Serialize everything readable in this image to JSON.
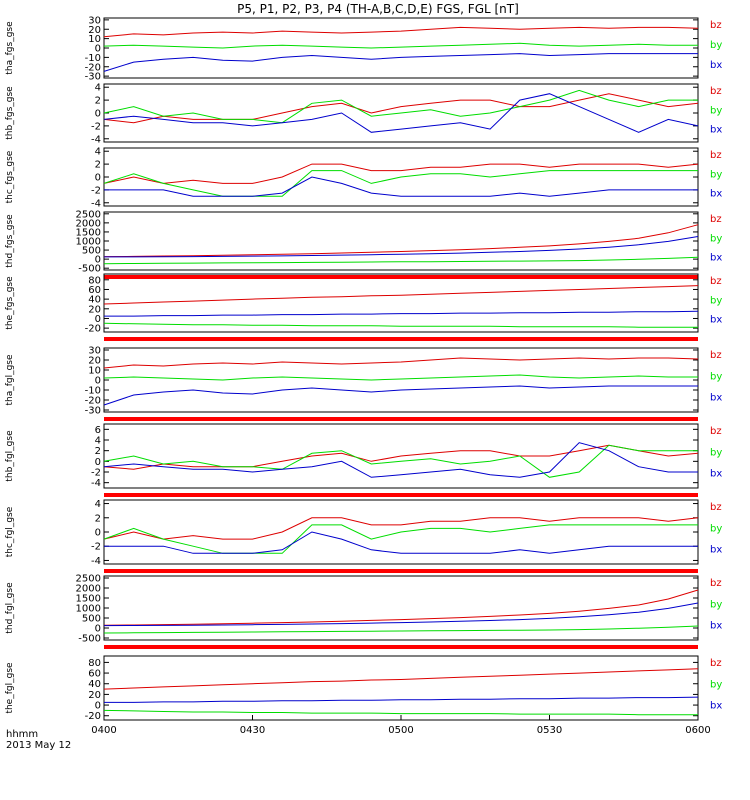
{
  "title": "P5, P1, P2, P3, P4 (TH-A,B,C,D,E) FGS, FGL [nT]",
  "footer": {
    "time_unit": "hhmm",
    "date": "2013 May 12"
  },
  "x_ticks": [
    "0400",
    "0430",
    "0500",
    "0530",
    "0600"
  ],
  "colors": {
    "bz": "#dd0000",
    "by": "#00dd00",
    "bx": "#0000cc",
    "bar": "#ff0000",
    "frame": "#000000"
  },
  "chart_data": [
    {
      "type": "line",
      "ylabel": "tha_fgs_gse",
      "yticks": [
        "30",
        "20",
        "10",
        "0",
        "-10",
        "-20",
        "-30"
      ],
      "ylim": [
        -32,
        32
      ],
      "x_range": [
        "0400",
        "0600"
      ],
      "series": [
        {
          "name": "bz",
          "values": [
            12,
            15,
            14,
            16,
            17,
            16,
            18,
            17,
            16,
            17,
            18,
            20,
            22,
            21,
            20,
            21,
            22,
            21,
            22,
            22,
            21
          ]
        },
        {
          "name": "by",
          "values": [
            2,
            3,
            2,
            1,
            0,
            2,
            3,
            2,
            1,
            0,
            1,
            2,
            3,
            4,
            5,
            3,
            2,
            3,
            4,
            3,
            3
          ]
        },
        {
          "name": "bx",
          "values": [
            -25,
            -15,
            -12,
            -10,
            -13,
            -14,
            -10,
            -8,
            -10,
            -12,
            -10,
            -9,
            -8,
            -7,
            -6,
            -8,
            -7,
            -6,
            -6,
            -6,
            -6
          ]
        }
      ],
      "status_bar": false
    },
    {
      "type": "line",
      "ylabel": "thb_fgs_gse",
      "yticks": [
        "4",
        "2",
        "0",
        "-2",
        "-4"
      ],
      "ylim": [
        -4.5,
        4.5
      ],
      "series": [
        {
          "name": "bz",
          "values": [
            -1,
            -1.5,
            -0.5,
            -1,
            -1,
            -1,
            0,
            1,
            1.5,
            0,
            1,
            1.5,
            2,
            2,
            1,
            1,
            2,
            3,
            2,
            1,
            1.5
          ]
        },
        {
          "name": "by",
          "values": [
            0,
            1,
            -0.5,
            0,
            -1,
            -1,
            -1.5,
            1.5,
            2,
            -0.5,
            0,
            0.5,
            -0.5,
            0,
            1,
            2,
            3.5,
            2,
            1,
            2,
            2
          ]
        },
        {
          "name": "bx",
          "values": [
            -1,
            -0.5,
            -1,
            -1.5,
            -1.5,
            -2,
            -1.5,
            -1,
            0,
            -3,
            -2.5,
            -2,
            -1.5,
            -2.5,
            2,
            3,
            1,
            -1,
            -3,
            -1,
            -2
          ]
        }
      ],
      "status_bar": false
    },
    {
      "type": "line",
      "ylabel": "thc_fgs_gse",
      "yticks": [
        "4",
        "2",
        "0",
        "-2",
        "-4"
      ],
      "ylim": [
        -4.5,
        4.5
      ],
      "series": [
        {
          "name": "bz",
          "values": [
            -1,
            0,
            -1,
            -0.5,
            -1,
            -1,
            0,
            2,
            2,
            1,
            1,
            1.5,
            1.5,
            2,
            2,
            1.5,
            2,
            2,
            2,
            1.5,
            2
          ]
        },
        {
          "name": "by",
          "values": [
            -1,
            0.5,
            -1,
            -2,
            -3,
            -3,
            -3,
            1,
            1,
            -1,
            0,
            0.5,
            0.5,
            0,
            0.5,
            1,
            1,
            1,
            1,
            1,
            1
          ]
        },
        {
          "name": "bx",
          "values": [
            -2,
            -2,
            -2,
            -3,
            -3,
            -3,
            -2.5,
            0,
            -1,
            -2.5,
            -3,
            -3,
            -3,
            -3,
            -2.5,
            -3,
            -2.5,
            -2,
            -2,
            -2,
            -2
          ]
        }
      ],
      "status_bar": false
    },
    {
      "type": "line",
      "ylabel": "thd_fgs_gse",
      "yticks": [
        "2500",
        "2000",
        "1500",
        "1000",
        "500",
        "0",
        "-500"
      ],
      "ylim": [
        -600,
        2600
      ],
      "series": [
        {
          "name": "bz",
          "values": [
            140,
            150,
            170,
            190,
            210,
            240,
            270,
            300,
            340,
            380,
            420,
            470,
            520,
            580,
            650,
            730,
            840,
            980,
            1150,
            1450,
            1900
          ]
        },
        {
          "name": "by",
          "values": [
            -250,
            -240,
            -230,
            -220,
            -210,
            -200,
            -190,
            -180,
            -170,
            -160,
            -150,
            -140,
            -130,
            -120,
            -110,
            -100,
            -80,
            -50,
            -10,
            40,
            100
          ]
        },
        {
          "name": "bx",
          "values": [
            120,
            125,
            130,
            140,
            150,
            165,
            180,
            200,
            220,
            245,
            270,
            300,
            335,
            375,
            420,
            480,
            560,
            660,
            790,
            980,
            1250
          ]
        }
      ],
      "status_bar": true
    },
    {
      "type": "line",
      "ylabel": "the_fgs_gse",
      "yticks": [
        "80",
        "60",
        "40",
        "20",
        "0",
        "-20"
      ],
      "ylim": [
        -28,
        92
      ],
      "series": [
        {
          "name": "bz",
          "values": [
            30,
            32,
            34,
            36,
            38,
            40,
            42,
            44,
            45,
            47,
            48,
            50,
            52,
            54,
            56,
            58,
            60,
            62,
            64,
            66,
            68
          ]
        },
        {
          "name": "by",
          "values": [
            -10,
            -11,
            -12,
            -13,
            -13,
            -14,
            -14,
            -15,
            -15,
            -15,
            -16,
            -16,
            -16,
            -16,
            -17,
            -17,
            -17,
            -17,
            -18,
            -18,
            -18
          ]
        },
        {
          "name": "bx",
          "values": [
            5,
            5,
            6,
            6,
            7,
            7,
            8,
            8,
            9,
            9,
            10,
            10,
            11,
            11,
            12,
            12,
            13,
            13,
            14,
            14,
            15
          ]
        }
      ],
      "status_bar": true
    },
    {
      "type": "line",
      "ylabel": "tha_fgl_gse",
      "yticks": [
        "30",
        "20",
        "10",
        "0",
        "-10",
        "-20",
        "-30"
      ],
      "ylim": [
        -32,
        32
      ],
      "series": [
        {
          "name": "bz",
          "values": [
            12,
            15,
            14,
            16,
            17,
            16,
            18,
            17,
            16,
            17,
            18,
            20,
            22,
            21,
            20,
            21,
            22,
            21,
            22,
            22,
            21
          ]
        },
        {
          "name": "by",
          "values": [
            2,
            3,
            2,
            1,
            0,
            2,
            3,
            2,
            1,
            0,
            1,
            2,
            3,
            4,
            5,
            3,
            2,
            3,
            4,
            3,
            3
          ]
        },
        {
          "name": "bx",
          "values": [
            -25,
            -15,
            -12,
            -10,
            -13,
            -14,
            -10,
            -8,
            -10,
            -12,
            -10,
            -9,
            -8,
            -7,
            -6,
            -8,
            -7,
            -6,
            -6,
            -6,
            -6
          ]
        }
      ],
      "status_bar": true
    },
    {
      "type": "line",
      "ylabel": "thb_fgl_gse",
      "yticks": [
        "6",
        "4",
        "2",
        "0",
        "-2",
        "-4"
      ],
      "ylim": [
        -5,
        7
      ],
      "series": [
        {
          "name": "bz",
          "values": [
            -1,
            -1.5,
            -0.5,
            -1,
            -1,
            -1,
            0,
            1,
            1.5,
            0,
            1,
            1.5,
            2,
            2,
            1,
            1,
            2,
            3,
            2,
            1,
            1.5
          ]
        },
        {
          "name": "by",
          "values": [
            0,
            1,
            -0.5,
            0,
            -1,
            -1,
            -1.5,
            1.5,
            2,
            -0.5,
            0,
            0.5,
            -0.5,
            0,
            1,
            -3,
            -2,
            3,
            2,
            2,
            2
          ]
        },
        {
          "name": "bx",
          "values": [
            -1,
            -0.5,
            -1,
            -1.5,
            -1.5,
            -2,
            -1.5,
            -1,
            0,
            -3,
            -2.5,
            -2,
            -1.5,
            -2.5,
            -3,
            -2,
            3.5,
            2,
            -1,
            -2,
            -2
          ]
        }
      ],
      "status_bar": true
    },
    {
      "type": "line",
      "ylabel": "thc_fgl_gse",
      "yticks": [
        "4",
        "2",
        "0",
        "-2",
        "-4"
      ],
      "ylim": [
        -4.5,
        4.5
      ],
      "series": [
        {
          "name": "bz",
          "values": [
            -1,
            0,
            -1,
            -0.5,
            -1,
            -1,
            0,
            2,
            2,
            1,
            1,
            1.5,
            1.5,
            2,
            2,
            1.5,
            2,
            2,
            2,
            1.5,
            2
          ]
        },
        {
          "name": "by",
          "values": [
            -1,
            0.5,
            -1,
            -2,
            -3,
            -3,
            -3,
            1,
            1,
            -1,
            0,
            0.5,
            0.5,
            0,
            0.5,
            1,
            1,
            1,
            1,
            1,
            1
          ]
        },
        {
          "name": "bx",
          "values": [
            -2,
            -2,
            -2,
            -3,
            -3,
            -3,
            -2.5,
            0,
            -1,
            -2.5,
            -3,
            -3,
            -3,
            -3,
            -2.5,
            -3,
            -2.5,
            -2,
            -2,
            -2,
            -2
          ]
        }
      ],
      "status_bar": true
    },
    {
      "type": "line",
      "ylabel": "thd_fgl_gse",
      "yticks": [
        "2500",
        "2000",
        "1500",
        "1000",
        "500",
        "0",
        "-500"
      ],
      "ylim": [
        -600,
        2600
      ],
      "series": [
        {
          "name": "bz",
          "values": [
            140,
            150,
            170,
            190,
            210,
            240,
            270,
            300,
            340,
            380,
            420,
            470,
            520,
            580,
            650,
            730,
            840,
            980,
            1150,
            1450,
            1900
          ]
        },
        {
          "name": "by",
          "values": [
            -250,
            -240,
            -230,
            -220,
            -210,
            -200,
            -190,
            -180,
            -170,
            -160,
            -150,
            -140,
            -130,
            -120,
            -110,
            -100,
            -80,
            -50,
            -10,
            40,
            100
          ]
        },
        {
          "name": "bx",
          "values": [
            120,
            125,
            130,
            140,
            150,
            165,
            180,
            200,
            220,
            245,
            270,
            300,
            335,
            375,
            420,
            480,
            560,
            660,
            790,
            980,
            1250
          ]
        }
      ],
      "status_bar": true
    },
    {
      "type": "line",
      "ylabel": "the_fgl_gse",
      "yticks": [
        "80",
        "60",
        "40",
        "20",
        "0",
        "-20"
      ],
      "ylim": [
        -28,
        92
      ],
      "series": [
        {
          "name": "bz",
          "values": [
            30,
            32,
            34,
            36,
            38,
            40,
            42,
            44,
            45,
            47,
            48,
            50,
            52,
            54,
            56,
            58,
            60,
            62,
            64,
            66,
            68
          ]
        },
        {
          "name": "by",
          "values": [
            -10,
            -11,
            -12,
            -13,
            -13,
            -14,
            -14,
            -15,
            -15,
            -15,
            -16,
            -16,
            -16,
            -16,
            -17,
            -17,
            -17,
            -17,
            -18,
            -18,
            -18
          ]
        },
        {
          "name": "bx",
          "values": [
            5,
            5,
            6,
            6,
            7,
            7,
            8,
            8,
            9,
            9,
            10,
            10,
            11,
            11,
            12,
            12,
            13,
            13,
            14,
            14,
            15
          ]
        }
      ],
      "status_bar": false
    }
  ]
}
